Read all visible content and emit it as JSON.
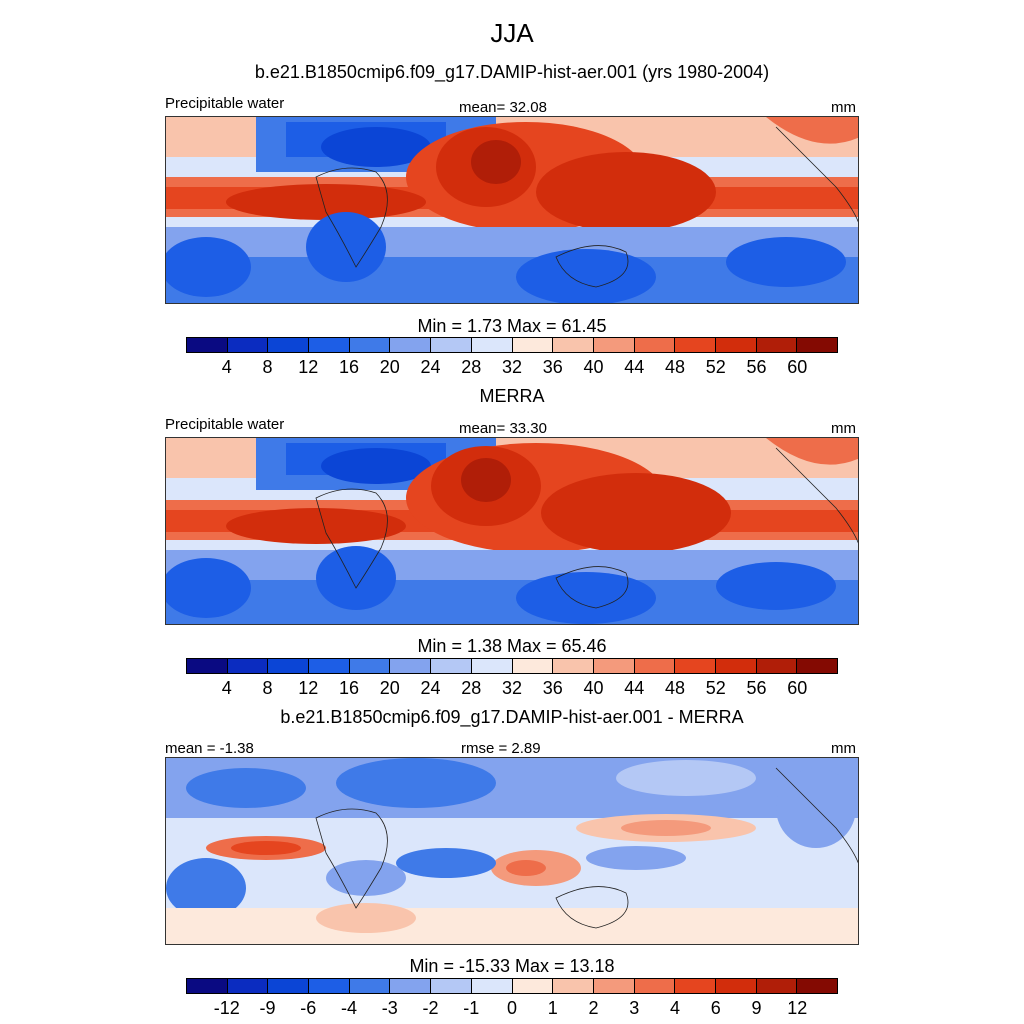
{
  "figure": {
    "title": "JJA",
    "subtitle": "b.e21.B1850cmip6.f09_g17.DAMIP-hist-aer.001 (yrs 1980-2004)"
  },
  "panels": [
    {
      "left_label": "Precipitable water",
      "center_label": "mean=  32.08",
      "right_label": "mm",
      "minmax": "Min =    1.73 Max =  61.45",
      "kind": "field"
    },
    {
      "heading": "MERRA",
      "left_label": "Precipitable water",
      "center_label": "mean=  33.30",
      "right_label": "mm",
      "minmax": "Min =    1.38 Max =  65.46",
      "kind": "field"
    },
    {
      "heading": "b.e21.B1850cmip6.f09_g17.DAMIP-hist-aer.001 - MERRA",
      "left_label": "mean =  -1.38",
      "center_label": "rmse =    2.89",
      "right_label": "mm",
      "minmax": "Min = -15.33 Max =  13.18",
      "kind": "diff"
    }
  ],
  "colorbar": {
    "colors": [
      "#0a0a82",
      "#0b2cc0",
      "#0b45d6",
      "#1d5ee6",
      "#3f7ae8",
      "#83a3ee",
      "#b4c8f5",
      "#dbe6fb",
      "#fde9dc",
      "#f9c4ac",
      "#f49a7c",
      "#ee6d4a",
      "#e5451f",
      "#d22d0c",
      "#b01e08",
      "#840a02"
    ],
    "field_ticks": [
      "4",
      "8",
      "12",
      "16",
      "20",
      "24",
      "28",
      "32",
      "36",
      "40",
      "44",
      "48",
      "52",
      "56",
      "60"
    ],
    "diff_ticks": [
      "-12",
      "-9",
      "-6",
      "-4",
      "-3",
      "-2",
      "-1",
      "0",
      "1",
      "2",
      "3",
      "4",
      "6",
      "9",
      "12"
    ]
  }
}
